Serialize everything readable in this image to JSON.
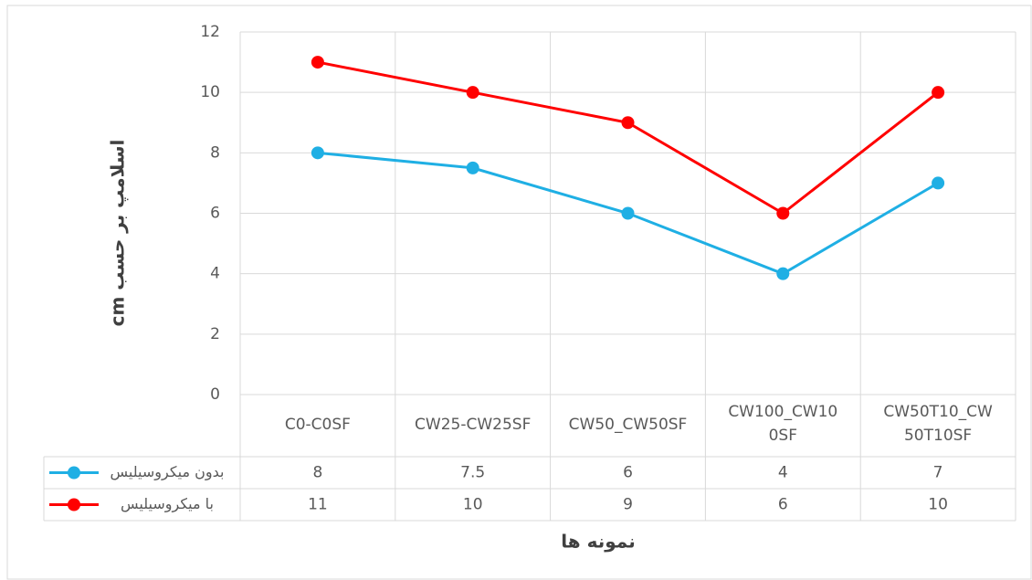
{
  "chart_data": {
    "type": "line",
    "categories": [
      "C0-C0SF",
      "CW25-CW25SF",
      "CW50_CW50SF",
      "CW100_CW100SF",
      "CW50T10_CW50T10SF"
    ],
    "series": [
      {
        "name": "بدون میکروسیلیس",
        "color": "#1fafe4",
        "values": [
          8,
          7.5,
          6,
          4,
          7
        ]
      },
      {
        "name": "با میکروسیلیس",
        "color": "#ff0000",
        "values": [
          11,
          10,
          9,
          6,
          10
        ]
      }
    ],
    "y_label": "اسلامپ بر حسب cm",
    "x_label": "نمونه ها",
    "ylim": [
      0,
      12
    ],
    "yticks": [
      0,
      2,
      4,
      6,
      8,
      10,
      12
    ],
    "grid": true
  }
}
